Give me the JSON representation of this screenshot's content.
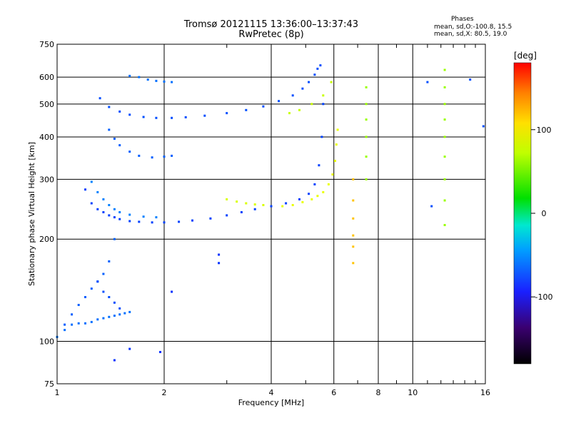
{
  "header": {
    "title_line1": "Tromsø 20121115 13:36:00–13:37:43",
    "title_line2": "RwPretec (8p)",
    "phase_heading": "Phases",
    "phase_o": "mean, sd,O:-100.8, 15.5",
    "phase_x": "mean, sd,X:  80.5, 19.0"
  },
  "colorbar": {
    "label": "[deg]",
    "ticks": [
      "100",
      "0",
      "-100"
    ],
    "tick_values": [
      100,
      0,
      -100
    ],
    "range": [
      -180,
      180
    ]
  },
  "chart_data": {
    "type": "scatter",
    "xlabel": "Frequency [MHz]",
    "ylabel": "Stationary phase Virtual Height [km]",
    "x_scale": "log",
    "y_scale": "log",
    "xlim": [
      1,
      16
    ],
    "ylim": [
      75,
      750
    ],
    "xticks": [
      1,
      2,
      4,
      6,
      8,
      10,
      16
    ],
    "xtick_labels": [
      "1",
      "2",
      "4",
      "6",
      "8",
      "10",
      "16"
    ],
    "yticks": [
      75,
      100,
      200,
      300,
      400,
      500,
      600,
      750
    ],
    "ytick_labels": [
      "75",
      "100",
      "200",
      "300",
      "400",
      "500",
      "600",
      "750"
    ],
    "grid": true,
    "color_scale": "rainbow",
    "traces": [
      {
        "phase": -100,
        "x": [
          1.0,
          1.05,
          1.1,
          1.15,
          1.2,
          1.25,
          1.3,
          1.35,
          1.4,
          1.45,
          1.5,
          1.55,
          1.6
        ],
        "y": [
          103,
          108,
          112,
          113,
          113,
          114,
          116,
          117,
          118,
          119,
          120,
          121,
          122
        ]
      },
      {
        "phase": -105,
        "x": [
          1.05,
          1.1,
          1.15,
          1.2,
          1.25,
          1.3,
          1.35,
          1.4,
          1.45
        ],
        "y": [
          112,
          120,
          128,
          135,
          143,
          150,
          158,
          172,
          200
        ]
      },
      {
        "phase": -110,
        "x": [
          1.3,
          1.35,
          1.4,
          1.45,
          1.5
        ],
        "y": [
          150,
          140,
          135,
          130,
          125
        ]
      },
      {
        "phase": -115,
        "x": [
          1.2,
          1.25,
          1.3,
          1.35,
          1.4,
          1.45,
          1.5,
          1.6,
          1.7,
          1.85,
          2.0,
          2.2,
          2.4,
          2.7,
          3.0,
          3.3,
          3.6,
          4.0,
          4.4,
          4.8,
          5.1,
          5.3,
          5.45,
          5.55,
          5.6
        ],
        "y": [
          280,
          255,
          245,
          240,
          235,
          232,
          229,
          226,
          225,
          224,
          224,
          225,
          227,
          230,
          235,
          240,
          245,
          250,
          255,
          262,
          272,
          290,
          330,
          400,
          500
        ]
      },
      {
        "phase": -95,
        "x": [
          1.25,
          1.3,
          1.35,
          1.4,
          1.45,
          1.5,
          1.6,
          1.75,
          1.9
        ],
        "y": [
          295,
          275,
          262,
          252,
          245,
          240,
          236,
          233,
          232
        ]
      },
      {
        "phase": -110,
        "x": [
          1.32,
          1.4,
          1.5,
          1.6,
          1.75,
          1.9,
          2.1,
          2.3,
          2.6,
          3.0,
          3.4,
          3.8,
          4.2,
          4.6,
          4.9,
          5.1,
          5.3,
          5.4,
          5.5
        ],
        "y": [
          520,
          490,
          475,
          465,
          458,
          455,
          455,
          457,
          462,
          470,
          480,
          492,
          510,
          530,
          555,
          580,
          610,
          635,
          650
        ]
      },
      {
        "phase": -105,
        "x": [
          1.4,
          1.45,
          1.5,
          1.6,
          1.7,
          1.85,
          2.0,
          2.1
        ],
        "y": [
          420,
          395,
          378,
          362,
          352,
          348,
          350,
          352
        ]
      },
      {
        "phase": -100,
        "x": [
          1.6,
          1.7,
          1.8,
          1.9,
          2.0,
          2.1
        ],
        "y": [
          605,
          600,
          590,
          585,
          582,
          580
        ]
      },
      {
        "phase": 95,
        "x": [
          4.3,
          4.6,
          4.9,
          5.2,
          5.4,
          5.6,
          5.8,
          5.95,
          6.05,
          6.1,
          6.15
        ],
        "y": [
          250,
          252,
          257,
          262,
          268,
          275,
          290,
          310,
          340,
          380,
          420
        ]
      },
      {
        "phase": 90,
        "x": [
          3.0,
          3.2,
          3.4,
          3.6,
          3.8
        ],
        "y": [
          262,
          258,
          255,
          253,
          252
        ]
      },
      {
        "phase": 85,
        "x": [
          4.5,
          4.8,
          5.2,
          5.6,
          5.9
        ],
        "y": [
          470,
          480,
          500,
          530,
          580
        ]
      },
      {
        "phase": 70,
        "x": [
          7.4,
          7.4,
          7.4,
          7.4,
          7.4,
          7.4
        ],
        "y": [
          300,
          350,
          400,
          450,
          500,
          560
        ]
      },
      {
        "phase": 70,
        "x": [
          12.3,
          12.3,
          12.3,
          12.3,
          12.3,
          12.3,
          12.3,
          12.3,
          12.3
        ],
        "y": [
          220,
          260,
          300,
          350,
          400,
          450,
          500,
          560,
          630
        ]
      },
      {
        "phase": -110,
        "x": [
          11.0,
          11.3,
          14.5,
          15.8
        ],
        "y": [
          580,
          250,
          590,
          430
        ]
      },
      {
        "phase": 120,
        "x": [
          6.8,
          6.8,
          6.8,
          6.8,
          6.8,
          6.8
        ],
        "y": [
          170,
          190,
          205,
          230,
          260,
          300
        ]
      },
      {
        "phase": -120,
        "x": [
          2.85,
          2.85,
          2.1,
          1.6,
          1.45,
          1.95
        ],
        "y": [
          170,
          180,
          140,
          95,
          88,
          93
        ]
      }
    ]
  }
}
